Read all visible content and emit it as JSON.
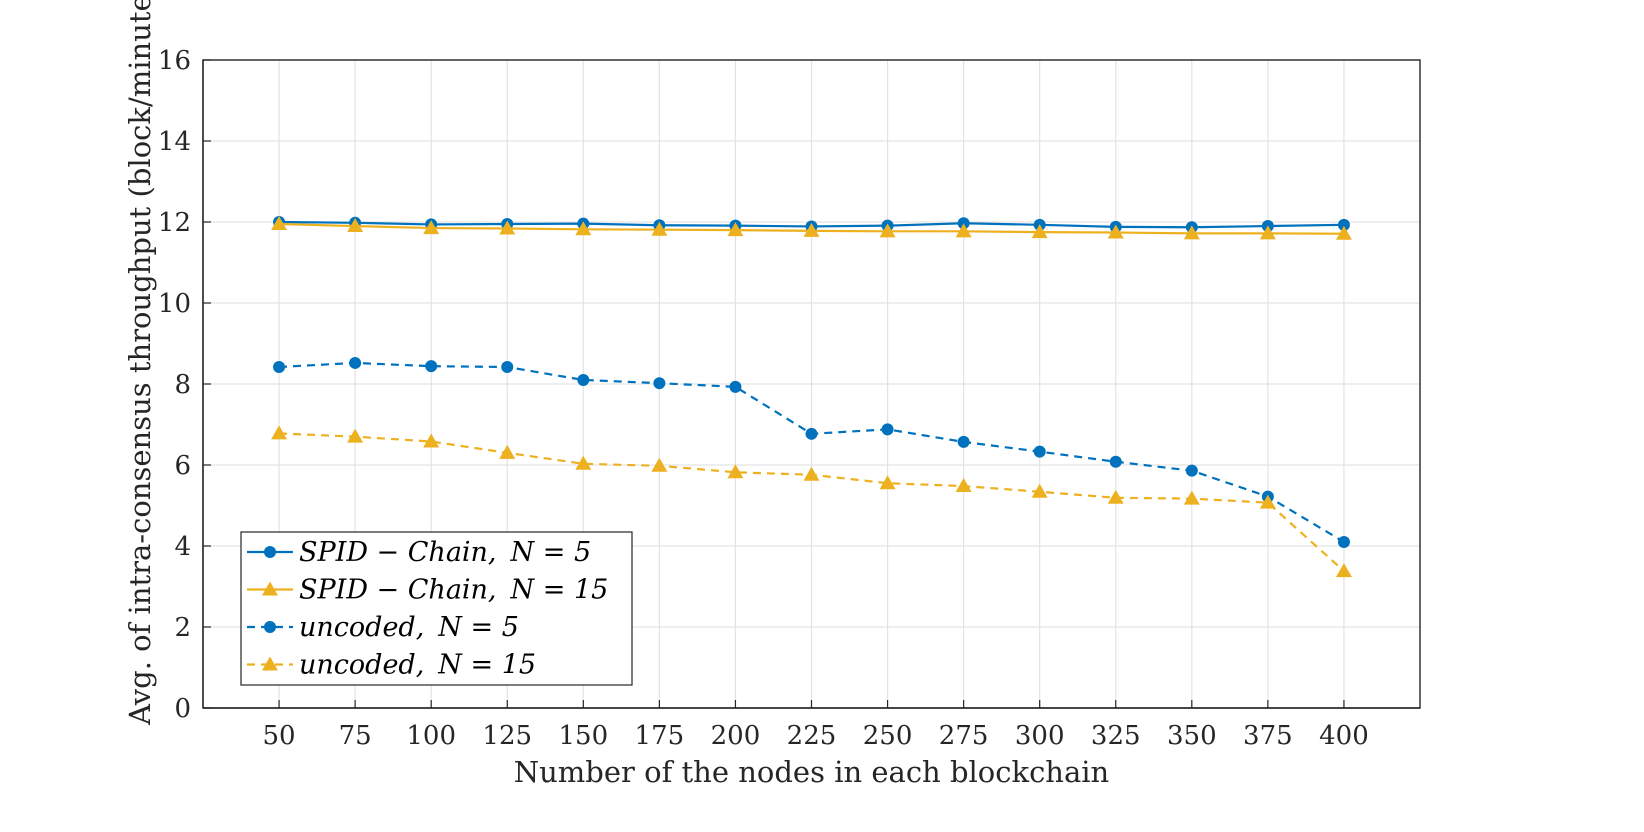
{
  "chart_data": {
    "type": "line",
    "title": "",
    "xlabel": "Number of the nodes in each blockchain",
    "ylabel": "Avg. of intra-consensus throughput (block/minute)",
    "x": [
      50,
      75,
      100,
      125,
      150,
      175,
      200,
      225,
      250,
      275,
      300,
      325,
      350,
      375,
      400
    ],
    "x_ticks": [
      "50",
      "75",
      "100",
      "125",
      "150",
      "175",
      "200",
      "225",
      "250",
      "275",
      "300",
      "325",
      "350",
      "375",
      "400"
    ],
    "xlim": [
      25,
      425
    ],
    "ylim": [
      0,
      16
    ],
    "y_ticks": [
      "0",
      "2",
      "4",
      "6",
      "8",
      "10",
      "12",
      "14",
      "16"
    ],
    "grid": true,
    "legend_position": "bottom-left",
    "series": [
      {
        "name": "SPID − Chain, N = 5",
        "legend_name": "SPID − Chain,",
        "legend_param": "N = 5",
        "color": "#0072BD",
        "line_style": "solid",
        "marker": "circle",
        "values": [
          12.0,
          11.98,
          11.94,
          11.95,
          11.96,
          11.92,
          11.91,
          11.89,
          11.91,
          11.97,
          11.93,
          11.88,
          11.87,
          11.9,
          11.93
        ]
      },
      {
        "name": "SPID − Chain, N = 15",
        "legend_name": "SPID − Chain,",
        "legend_param": "N = 15",
        "color": "#EDB120",
        "line_style": "solid",
        "marker": "triangle",
        "values": [
          11.95,
          11.9,
          11.85,
          11.84,
          11.82,
          11.81,
          11.8,
          11.78,
          11.77,
          11.77,
          11.75,
          11.74,
          11.72,
          11.72,
          11.71
        ]
      },
      {
        "name": "uncoded, N = 5",
        "legend_name": "uncoded,",
        "legend_param": "N = 5",
        "color": "#0072BD",
        "line_style": "dashed",
        "marker": "circle",
        "values": [
          8.42,
          8.52,
          8.44,
          8.42,
          8.1,
          8.02,
          7.93,
          6.77,
          6.88,
          6.57,
          6.33,
          6.08,
          5.86,
          5.22,
          4.1
        ]
      },
      {
        "name": "uncoded, N = 15",
        "legend_name": "uncoded,",
        "legend_param": "N = 15",
        "color": "#EDB120",
        "line_style": "dashed",
        "marker": "triangle",
        "values": [
          6.78,
          6.7,
          6.58,
          6.3,
          6.03,
          5.98,
          5.82,
          5.76,
          5.55,
          5.48,
          5.34,
          5.19,
          5.17,
          5.07,
          3.38
        ]
      }
    ]
  }
}
